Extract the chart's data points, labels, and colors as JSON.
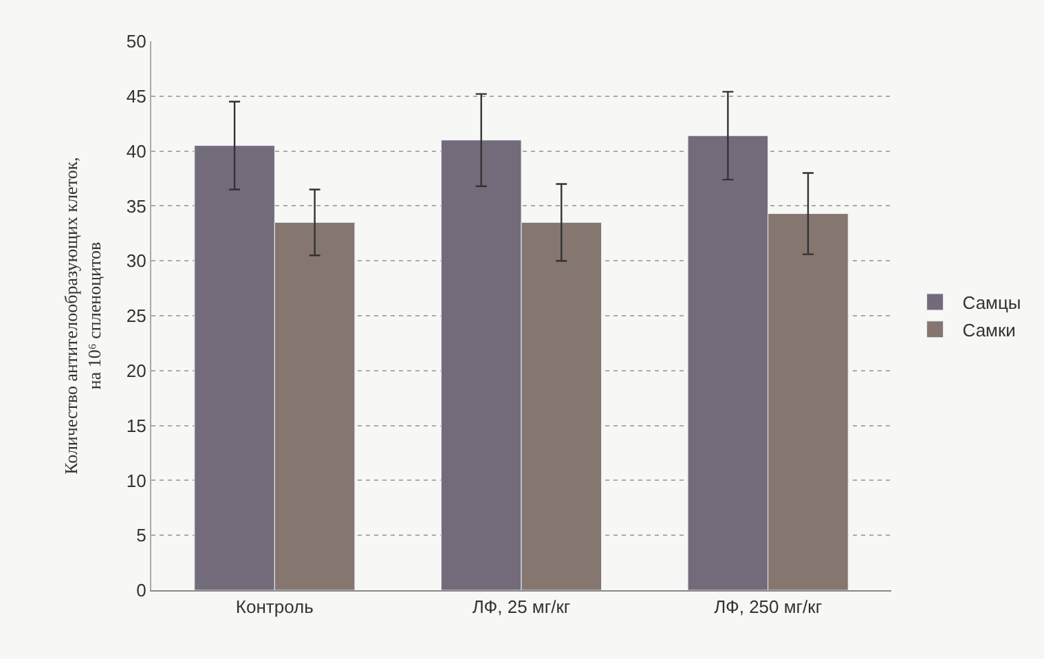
{
  "chart_data": {
    "type": "bar",
    "ylabel": "Количество антителообразующих клеток,\nна 10⁶ спленоцитов",
    "categories": [
      "Контроль",
      "ЛФ, 25 мг/кг",
      "ЛФ, 250 мг/кг"
    ],
    "series": [
      {
        "name": "Самцы",
        "color": "#746b7a",
        "values": [
          40.5,
          41,
          41.4
        ],
        "errors": [
          4,
          4.2,
          4
        ]
      },
      {
        "name": "Самки",
        "color": "#857670",
        "values": [
          33.5,
          33.5,
          34.3
        ],
        "errors": [
          3,
          3.5,
          3.7
        ]
      }
    ],
    "ylim": [
      0,
      50
    ],
    "yticks": [
      0,
      5,
      10,
      15,
      20,
      25,
      30,
      35,
      40,
      45,
      50
    ],
    "grid": "y",
    "legend": "right"
  }
}
